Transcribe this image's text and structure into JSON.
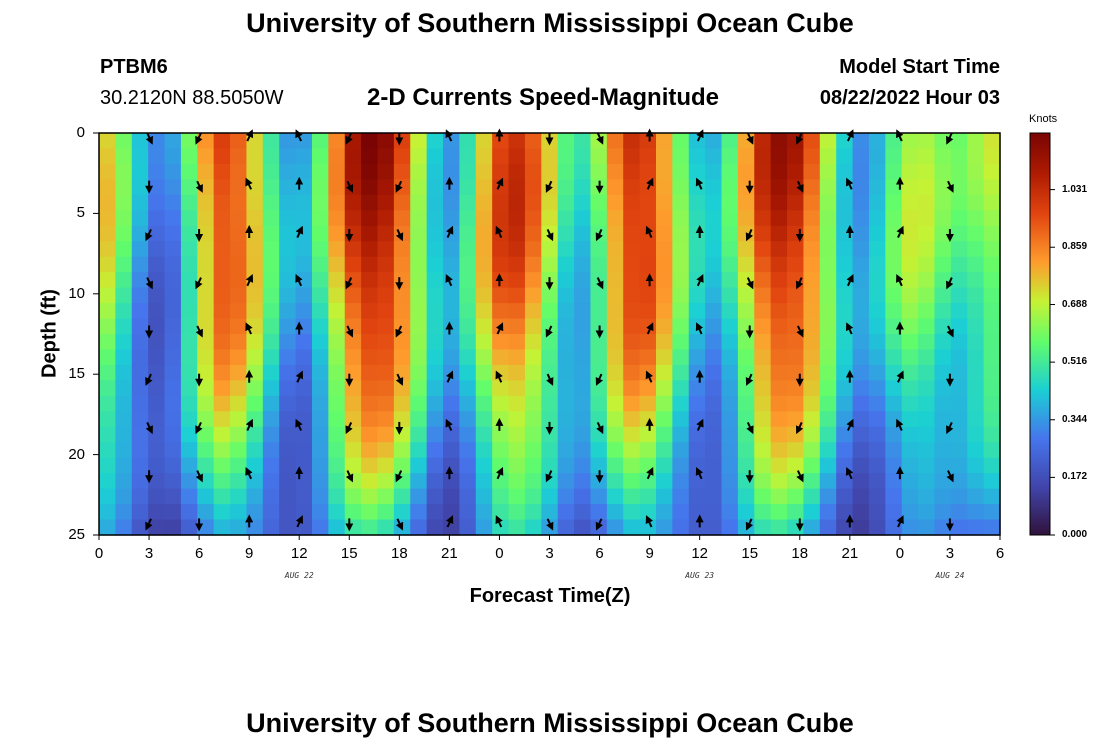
{
  "header": {
    "title": "University of Southern Mississippi Ocean Cube",
    "station_id": "PTBM6",
    "station_coords": "30.2120N  88.5050W",
    "plot_subtitle": "2-D Currents Speed-Magnitude",
    "model_start_label": "Model Start Time",
    "model_start_value": "08/22/2022 Hour 03",
    "footer_title": "University of Southern Mississippi Ocean Cube"
  },
  "chart_data": {
    "type": "heatmap",
    "title": "2-D Currents Speed-Magnitude",
    "xlabel": "Forecast Time(Z)",
    "ylabel": "Depth (ft)",
    "xlim": [
      0,
      54
    ],
    "ylim": [
      25,
      0
    ],
    "x_tick_labels": [
      "0",
      "3",
      "6",
      "9",
      "12",
      "15",
      "18",
      "21",
      "0",
      "3",
      "6",
      "9",
      "12",
      "15",
      "18",
      "21",
      "0",
      "3",
      "6"
    ],
    "y_tick_labels": [
      "0",
      "5",
      "10",
      "15",
      "20",
      "25"
    ],
    "date_labels": [
      {
        "text": "AUG 22",
        "hour": 12
      },
      {
        "text": "AUG 23",
        "hour": 36
      },
      {
        "text": "AUG 24",
        "hour": 51
      }
    ],
    "colorbar": {
      "title": "Knots",
      "ticks": [
        "1.031",
        "0.859",
        "0.688",
        "0.516",
        "0.344",
        "0.172",
        "0.000"
      ],
      "min": 0,
      "max": 1.2
    },
    "surface_speed_knots": [
      0.8,
      0.62,
      0.3,
      0.2,
      0.3,
      0.45,
      0.95,
      1.05,
      0.98,
      0.82,
      0.55,
      0.3,
      0.3,
      0.5,
      0.85,
      1.1,
      1.2,
      1.15,
      1.0,
      0.7,
      0.4,
      0.3,
      0.45,
      0.85,
      1.05,
      1.05,
      0.95,
      0.7,
      0.45,
      0.35,
      0.55,
      0.95,
      1.1,
      1.05,
      0.9,
      0.6,
      0.4,
      0.35,
      0.45,
      0.8,
      1.05,
      1.15,
      1.1,
      0.95,
      0.7,
      0.4,
      0.3,
      0.4,
      0.6,
      0.75,
      0.7,
      0.55,
      0.5,
      0.6,
      0.7
    ],
    "arrow_columns_hours": [
      3,
      6,
      9,
      12,
      15,
      18,
      21,
      24,
      27,
      30,
      33,
      36,
      39,
      42,
      45,
      48,
      51
    ],
    "arrow_rows_depth_ft": [
      0,
      3,
      6,
      9,
      12,
      15,
      18,
      21,
      24
    ]
  }
}
